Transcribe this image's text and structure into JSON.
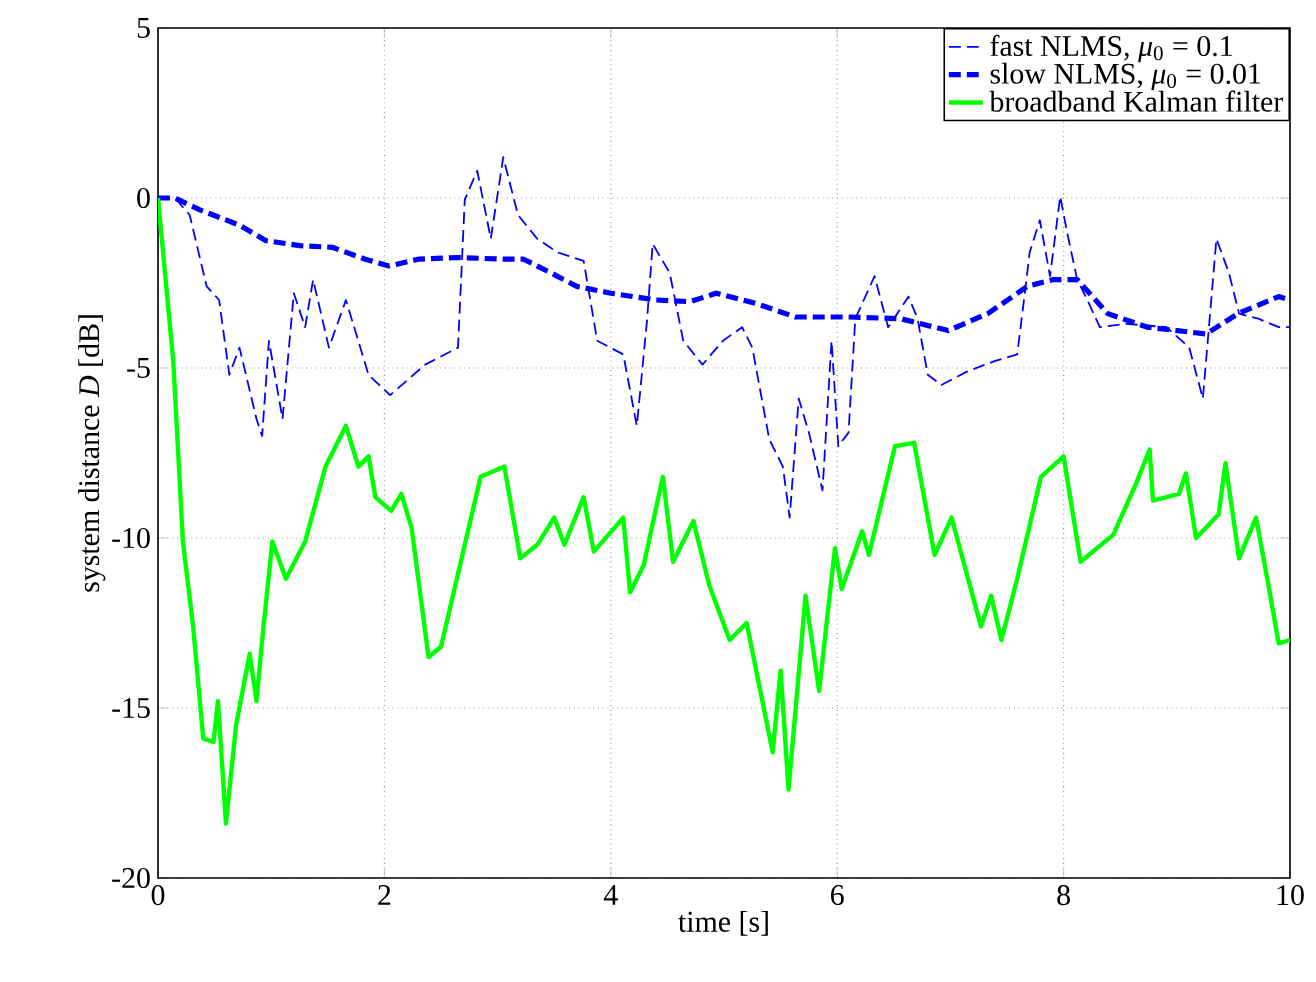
{
  "chart_data": {
    "type": "line",
    "xlabel": "time [s]",
    "ylabel": "system distance *D* [dB]",
    "xlim": [
      0,
      10
    ],
    "ylim": [
      -20,
      5
    ],
    "xticks": [
      0,
      2,
      4,
      6,
      8,
      10
    ],
    "yticks": [
      -20,
      -15,
      -10,
      -5,
      0,
      5
    ],
    "grid": true,
    "legend": "top right",
    "series": [
      {
        "name": "fast NLMS, *μ*$_{0}$ = 0.1",
        "color": "#0000ff",
        "line_style": "dashed",
        "x": [
          0,
          0.15,
          0.28,
          0.43,
          0.54,
          0.63,
          0.72,
          0.87,
          0.92,
          0.98,
          1.1,
          1.2,
          1.3,
          1.37,
          1.51,
          1.66,
          1.86,
          2.05,
          2.36,
          2.65,
          2.71,
          2.82,
          2.94,
          3.05,
          3.18,
          3.35,
          3.53,
          3.76,
          3.88,
          4.11,
          4.23,
          4.32,
          4.37,
          4.52,
          4.64,
          4.81,
          4.99,
          5.16,
          5.25,
          5.4,
          5.52,
          5.58,
          5.66,
          5.75,
          5.87,
          5.95,
          6.01,
          6.1,
          6.16,
          6.33,
          6.45,
          6.63,
          6.71,
          6.8,
          6.92,
          7.15,
          7.39,
          7.59,
          7.65,
          7.7,
          7.79,
          7.88,
          7.97,
          8.03,
          8.12,
          8.21,
          8.32,
          8.55,
          8.91,
          9.11,
          9.23,
          9.29,
          9.35,
          9.46,
          9.55,
          9.72,
          9.9,
          10
        ],
        "values": [
          0,
          0,
          -0.5,
          -2.6,
          -3.0,
          -5.2,
          -4.4,
          -6.5,
          -7.0,
          -4.2,
          -6.5,
          -2.8,
          -3.8,
          -2.4,
          -4.4,
          -3.0,
          -5.2,
          -5.8,
          -4.9,
          -4.4,
          -0.05,
          0.8,
          -1.2,
          1.2,
          -0.5,
          -1.2,
          -1.6,
          -1.85,
          -4.2,
          -4.6,
          -6.7,
          -3.6,
          -1.35,
          -2.2,
          -4.2,
          -4.9,
          -4.2,
          -3.8,
          -4.4,
          -7.1,
          -7.9,
          -9.4,
          -5.9,
          -6.9,
          -8.6,
          -4.2,
          -7.3,
          -6.9,
          -3.55,
          -2.3,
          -3.8,
          -2.9,
          -3.55,
          -5.2,
          -5.5,
          -5.1,
          -4.8,
          -4.6,
          -3.0,
          -1.6,
          -0.65,
          -2.3,
          0.05,
          -1.0,
          -2.4,
          -3.0,
          -3.8,
          -3.7,
          -3.8,
          -4.4,
          -5.9,
          -3.55,
          -1.2,
          -2.2,
          -3.4,
          -3.55,
          -3.8,
          -3.8
        ]
      },
      {
        "name": "slow NLMS, *μ*$_{0}$ = 0.01",
        "color": "#0000ff",
        "line_style": "dashed",
        "x": [
          0,
          0.15,
          0.37,
          0.72,
          0.95,
          1.25,
          1.54,
          1.83,
          2.04,
          2.3,
          2.65,
          3.05,
          3.23,
          3.47,
          3.7,
          4.0,
          4.4,
          4.7,
          4.93,
          5.28,
          5.63,
          6.1,
          6.56,
          6.98,
          7.33,
          7.68,
          7.91,
          8.12,
          8.39,
          8.74,
          9.26,
          9.54,
          9.9,
          10
        ],
        "values": [
          0,
          0,
          -0.35,
          -0.8,
          -1.25,
          -1.4,
          -1.45,
          -1.8,
          -2.0,
          -1.8,
          -1.75,
          -1.8,
          -1.8,
          -2.2,
          -2.6,
          -2.8,
          -3.0,
          -3.05,
          -2.8,
          -3.1,
          -3.5,
          -3.5,
          -3.55,
          -3.9,
          -3.4,
          -2.6,
          -2.4,
          -2.4,
          -3.4,
          -3.8,
          -4.0,
          -3.4,
          -2.9,
          -3.0
        ]
      },
      {
        "name": "broadband Kalman filter",
        "color": "#00ff00",
        "line_style": "solid",
        "x": [
          0,
          0.135,
          0.22,
          0.31,
          0.4,
          0.49,
          0.53,
          0.6,
          0.69,
          0.81,
          0.87,
          0.92,
          1.01,
          1.13,
          1.3,
          1.48,
          1.66,
          1.77,
          1.86,
          1.92,
          2.06,
          2.15,
          2.24,
          2.39,
          2.5,
          2.71,
          2.85,
          3.06,
          3.2,
          3.35,
          3.5,
          3.59,
          3.76,
          3.85,
          4.11,
          4.17,
          4.29,
          4.46,
          4.55,
          4.73,
          4.87,
          5.05,
          5.2,
          5.43,
          5.5,
          5.57,
          5.72,
          5.84,
          5.98,
          6.04,
          6.22,
          6.28,
          6.51,
          6.68,
          6.86,
          7.01,
          7.27,
          7.36,
          7.45,
          7.59,
          7.8,
          8.0,
          8.15,
          8.44,
          8.64,
          8.76,
          8.79,
          9.02,
          9.08,
          9.17,
          9.37,
          9.43,
          9.55,
          9.7,
          9.81,
          9.9,
          10
        ],
        "values": [
          0,
          -4.8,
          -10.1,
          -12.6,
          -15.9,
          -16.0,
          -14.8,
          -18.4,
          -15.5,
          -13.4,
          -14.8,
          -13.0,
          -10.1,
          -11.2,
          -10.1,
          -7.9,
          -6.7,
          -7.9,
          -7.6,
          -8.8,
          -9.2,
          -8.7,
          -9.7,
          -13.5,
          -13.2,
          -10.2,
          -8.2,
          -7.9,
          -10.6,
          -10.2,
          -9.4,
          -10.2,
          -8.8,
          -10.4,
          -9.4,
          -11.6,
          -10.8,
          -8.2,
          -10.7,
          -9.5,
          -11.4,
          -13.0,
          -12.5,
          -16.3,
          -13.9,
          -17.4,
          -11.7,
          -14.5,
          -10.3,
          -11.5,
          -9.8,
          -10.5,
          -7.3,
          -7.2,
          -10.5,
          -9.4,
          -12.6,
          -11.7,
          -13.0,
          -11.2,
          -8.2,
          -7.6,
          -10.7,
          -9.9,
          -8.4,
          -7.4,
          -8.9,
          -8.7,
          -8.1,
          -10.0,
          -9.3,
          -7.8,
          -10.6,
          -9.4,
          -11.4,
          -13.1,
          -13.0
        ]
      }
    ]
  }
}
